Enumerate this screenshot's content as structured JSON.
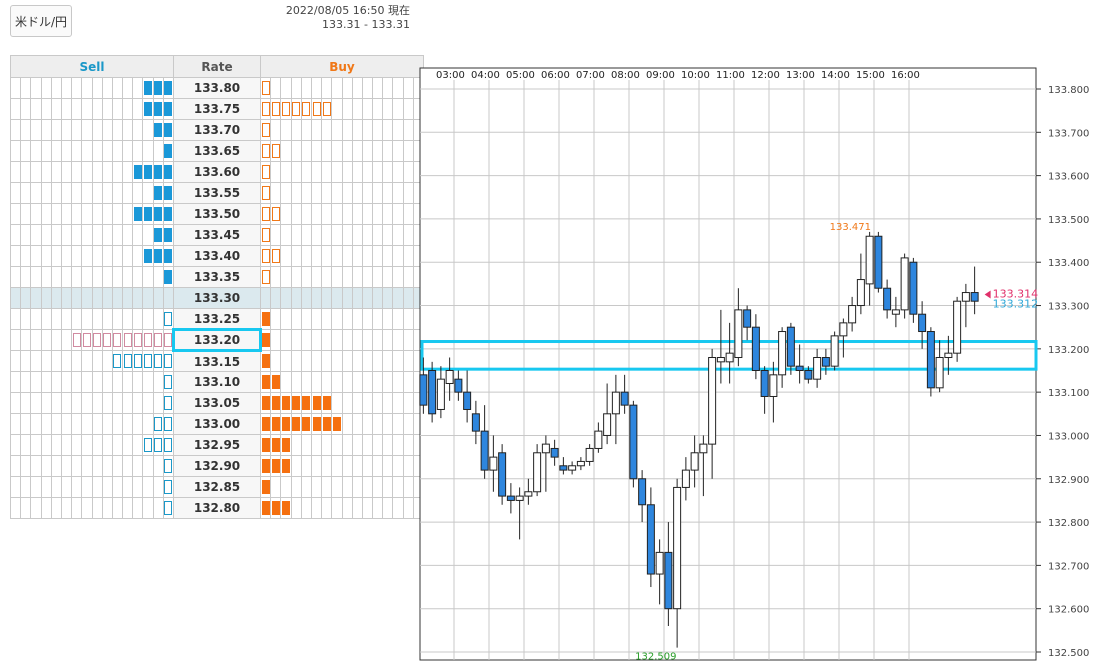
{
  "header": {
    "pair_label": "米ドル/円",
    "datetime_line": "2022/08/05 16:50 現在",
    "range_line": "133.31 - 133.31"
  },
  "orderbook": {
    "sell_label": "Sell",
    "rate_label": "Rate",
    "buy_label": "Buy",
    "current_rate": "133.30",
    "highlighted_rate": "133.20",
    "rows": [
      {
        "rate": "133.80",
        "sell": 3,
        "sell_style": "filled",
        "buy": 1,
        "buy_style": "outline"
      },
      {
        "rate": "133.75",
        "sell": 3,
        "sell_style": "filled",
        "buy": 7,
        "buy_style": "outline"
      },
      {
        "rate": "133.70",
        "sell": 2,
        "sell_style": "filled",
        "buy": 1,
        "buy_style": "outline"
      },
      {
        "rate": "133.65",
        "sell": 1,
        "sell_style": "filled",
        "buy": 2,
        "buy_style": "outline"
      },
      {
        "rate": "133.60",
        "sell": 4,
        "sell_style": "filled",
        "buy": 1,
        "buy_style": "outline"
      },
      {
        "rate": "133.55",
        "sell": 2,
        "sell_style": "filled",
        "buy": 1,
        "buy_style": "outline"
      },
      {
        "rate": "133.50",
        "sell": 4,
        "sell_style": "filled",
        "buy": 2,
        "buy_style": "outline"
      },
      {
        "rate": "133.45",
        "sell": 2,
        "sell_style": "filled",
        "buy": 1,
        "buy_style": "outline"
      },
      {
        "rate": "133.40",
        "sell": 3,
        "sell_style": "filled",
        "buy": 2,
        "buy_style": "outline"
      },
      {
        "rate": "133.35",
        "sell": 1,
        "sell_style": "filled",
        "buy": 1,
        "buy_style": "outline"
      },
      {
        "rate": "133.30",
        "sell": 0,
        "sell_style": "filled",
        "buy": 0,
        "buy_style": "filled"
      },
      {
        "rate": "133.25",
        "sell": 1,
        "sell_style": "outline",
        "buy": 1,
        "buy_style": "filled"
      },
      {
        "rate": "133.20",
        "sell": 10,
        "sell_style": "outline",
        "buy": 1,
        "buy_style": "filled"
      },
      {
        "rate": "133.15",
        "sell": 6,
        "sell_style": "outline",
        "buy": 1,
        "buy_style": "filled"
      },
      {
        "rate": "133.10",
        "sell": 1,
        "sell_style": "outline",
        "buy": 2,
        "buy_style": "filled"
      },
      {
        "rate": "133.05",
        "sell": 1,
        "sell_style": "outline",
        "buy": 7,
        "buy_style": "filled"
      },
      {
        "rate": "133.00",
        "sell": 2,
        "sell_style": "outline",
        "buy": 8,
        "buy_style": "filled"
      },
      {
        "rate": "132.95",
        "sell": 3,
        "sell_style": "outline",
        "buy": 3,
        "buy_style": "filled"
      },
      {
        "rate": "132.90",
        "sell": 1,
        "sell_style": "outline",
        "buy": 3,
        "buy_style": "filled"
      },
      {
        "rate": "132.85",
        "sell": 1,
        "sell_style": "outline",
        "buy": 1,
        "buy_style": "filled"
      },
      {
        "rate": "132.80",
        "sell": 1,
        "sell_style": "outline",
        "buy": 3,
        "buy_style": "filled"
      }
    ]
  },
  "chart_data": {
    "type": "candlestick",
    "x_ticks": [
      "03:00",
      "04:00",
      "05:00",
      "06:00",
      "07:00",
      "08:00",
      "09:00",
      "10:00",
      "11:00",
      "12:00",
      "13:00",
      "14:00",
      "15:00",
      "16:00"
    ],
    "y_ticks": [
      "133.800",
      "133.700",
      "133.600",
      "133.500",
      "133.400",
      "133.300",
      "133.200",
      "133.100",
      "133.000",
      "132.900",
      "132.800",
      "132.700",
      "132.600",
      "132.500"
    ],
    "ylim": [
      132.5,
      133.8
    ],
    "high_label": "133.471",
    "low_label": "132.509",
    "bid_label": "133.314",
    "ask_label": "133.312",
    "bid": 133.314,
    "ask": 133.312,
    "highlight_band": [
      133.16,
      133.21
    ],
    "colors": {
      "up_body": "#ffffff",
      "down_body": "#2e86de",
      "high_label": "#f07818",
      "low_label": "#2aa02a",
      "bid": "#e0306a",
      "ask": "#30a8d8",
      "band": "#18c8f0"
    },
    "candles": [
      {
        "o": 133.14,
        "h": 133.18,
        "l": 133.05,
        "c": 133.07
      },
      {
        "o": 133.15,
        "h": 133.17,
        "l": 133.03,
        "c": 133.05
      },
      {
        "o": 133.06,
        "h": 133.16,
        "l": 133.04,
        "c": 133.13
      },
      {
        "o": 133.12,
        "h": 133.18,
        "l": 133.08,
        "c": 133.15
      },
      {
        "o": 133.13,
        "h": 133.15,
        "l": 133.08,
        "c": 133.1
      },
      {
        "o": 133.1,
        "h": 133.15,
        "l": 133.03,
        "c": 133.06
      },
      {
        "o": 133.05,
        "h": 133.08,
        "l": 132.98,
        "c": 133.01
      },
      {
        "o": 133.01,
        "h": 133.07,
        "l": 132.9,
        "c": 132.92
      },
      {
        "o": 132.92,
        "h": 133.0,
        "l": 132.87,
        "c": 132.95
      },
      {
        "o": 132.96,
        "h": 132.98,
        "l": 132.84,
        "c": 132.86
      },
      {
        "o": 132.86,
        "h": 132.89,
        "l": 132.82,
        "c": 132.85
      },
      {
        "o": 132.85,
        "h": 132.88,
        "l": 132.76,
        "c": 132.86
      },
      {
        "o": 132.86,
        "h": 132.9,
        "l": 132.84,
        "c": 132.87
      },
      {
        "o": 132.87,
        "h": 132.98,
        "l": 132.86,
        "c": 132.96
      },
      {
        "o": 132.96,
        "h": 133.0,
        "l": 132.87,
        "c": 132.98
      },
      {
        "o": 132.97,
        "h": 132.99,
        "l": 132.93,
        "c": 132.95
      },
      {
        "o": 132.93,
        "h": 132.95,
        "l": 132.91,
        "c": 132.92
      },
      {
        "o": 132.92,
        "h": 132.94,
        "l": 132.91,
        "c": 132.93
      },
      {
        "o": 132.93,
        "h": 132.95,
        "l": 132.92,
        "c": 132.94
      },
      {
        "o": 132.94,
        "h": 132.98,
        "l": 132.93,
        "c": 132.97
      },
      {
        "o": 132.97,
        "h": 133.03,
        "l": 132.96,
        "c": 133.01
      },
      {
        "o": 133.0,
        "h": 133.12,
        "l": 132.98,
        "c": 133.05
      },
      {
        "o": 133.05,
        "h": 133.14,
        "l": 132.98,
        "c": 133.1
      },
      {
        "o": 133.1,
        "h": 133.14,
        "l": 133.05,
        "c": 133.07
      },
      {
        "o": 133.07,
        "h": 133.08,
        "l": 132.88,
        "c": 132.9
      },
      {
        "o": 132.9,
        "h": 132.92,
        "l": 132.8,
        "c": 132.84
      },
      {
        "o": 132.84,
        "h": 132.88,
        "l": 132.65,
        "c": 132.68
      },
      {
        "o": 132.68,
        "h": 132.76,
        "l": 132.61,
        "c": 132.73
      },
      {
        "o": 132.73,
        "h": 132.8,
        "l": 132.56,
        "c": 132.6
      },
      {
        "o": 132.6,
        "h": 132.9,
        "l": 132.51,
        "c": 132.88
      },
      {
        "o": 132.88,
        "h": 132.95,
        "l": 132.85,
        "c": 132.92
      },
      {
        "o": 132.92,
        "h": 133.0,
        "l": 132.88,
        "c": 132.96
      },
      {
        "o": 132.96,
        "h": 133.0,
        "l": 132.86,
        "c": 132.98
      },
      {
        "o": 132.98,
        "h": 133.2,
        "l": 132.9,
        "c": 133.18
      },
      {
        "o": 133.17,
        "h": 133.29,
        "l": 133.12,
        "c": 133.18
      },
      {
        "o": 133.17,
        "h": 133.26,
        "l": 133.12,
        "c": 133.19
      },
      {
        "o": 133.18,
        "h": 133.34,
        "l": 133.16,
        "c": 133.29
      },
      {
        "o": 133.29,
        "h": 133.3,
        "l": 133.22,
        "c": 133.25
      },
      {
        "o": 133.25,
        "h": 133.28,
        "l": 133.13,
        "c": 133.15
      },
      {
        "o": 133.15,
        "h": 133.16,
        "l": 133.05,
        "c": 133.09
      },
      {
        "o": 133.09,
        "h": 133.17,
        "l": 133.03,
        "c": 133.14
      },
      {
        "o": 133.14,
        "h": 133.25,
        "l": 133.11,
        "c": 133.24
      },
      {
        "o": 133.25,
        "h": 133.26,
        "l": 133.14,
        "c": 133.16
      },
      {
        "o": 133.16,
        "h": 133.21,
        "l": 133.12,
        "c": 133.15
      },
      {
        "o": 133.15,
        "h": 133.16,
        "l": 133.12,
        "c": 133.13
      },
      {
        "o": 133.13,
        "h": 133.2,
        "l": 133.11,
        "c": 133.18
      },
      {
        "o": 133.18,
        "h": 133.2,
        "l": 133.14,
        "c": 133.16
      },
      {
        "o": 133.16,
        "h": 133.24,
        "l": 133.15,
        "c": 133.23
      },
      {
        "o": 133.23,
        "h": 133.27,
        "l": 133.18,
        "c": 133.26
      },
      {
        "o": 133.26,
        "h": 133.32,
        "l": 133.24,
        "c": 133.3
      },
      {
        "o": 133.3,
        "h": 133.42,
        "l": 133.28,
        "c": 133.36
      },
      {
        "o": 133.35,
        "h": 133.47,
        "l": 133.3,
        "c": 133.46
      },
      {
        "o": 133.46,
        "h": 133.47,
        "l": 133.33,
        "c": 133.34
      },
      {
        "o": 133.34,
        "h": 133.36,
        "l": 133.27,
        "c": 133.29
      },
      {
        "o": 133.28,
        "h": 133.32,
        "l": 133.25,
        "c": 133.29
      },
      {
        "o": 133.29,
        "h": 133.42,
        "l": 133.27,
        "c": 133.41
      },
      {
        "o": 133.4,
        "h": 133.41,
        "l": 133.26,
        "c": 133.28
      },
      {
        "o": 133.28,
        "h": 133.31,
        "l": 133.2,
        "c": 133.24
      },
      {
        "o": 133.24,
        "h": 133.25,
        "l": 133.09,
        "c": 133.11
      },
      {
        "o": 133.11,
        "h": 133.22,
        "l": 133.1,
        "c": 133.18
      },
      {
        "o": 133.18,
        "h": 133.23,
        "l": 133.14,
        "c": 133.19
      },
      {
        "o": 133.19,
        "h": 133.32,
        "l": 133.17,
        "c": 133.31
      },
      {
        "o": 133.31,
        "h": 133.35,
        "l": 133.25,
        "c": 133.33
      },
      {
        "o": 133.33,
        "h": 133.39,
        "l": 133.28,
        "c": 133.31
      }
    ]
  }
}
